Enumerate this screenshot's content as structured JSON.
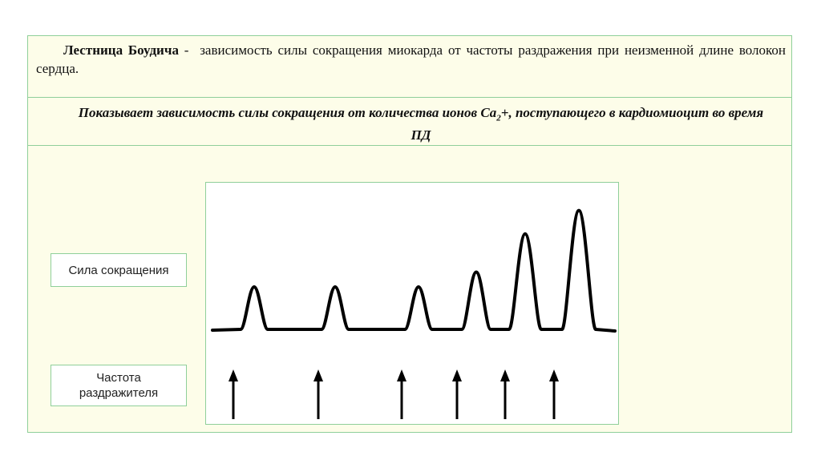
{
  "definition": {
    "term": "Лестница Боудича",
    "separator": " - ",
    "text": "зависимость силы сокращения миокарда от частоты раздражения при неизменной длине волокон сердца."
  },
  "note": {
    "part1": "Показывает зависимость силы сокращения от количества ионов Са",
    "sub": "2",
    "part2": "+, поступающего в кардиомиоцит во время ПД"
  },
  "labels": {
    "force": "Сила сокращения",
    "frequency": "Частота раздражителя"
  },
  "chart_data": {
    "type": "line",
    "title": "",
    "description_series": "contraction amplitude per stimulus",
    "peak_heights": [
      1.0,
      1.0,
      1.0,
      1.35,
      2.25,
      2.8
    ],
    "stimulus_count": 6
  },
  "colors": {
    "frame_border": "#8fcf9a",
    "frame_fill": "#fdfde9",
    "trace": "#000000"
  }
}
